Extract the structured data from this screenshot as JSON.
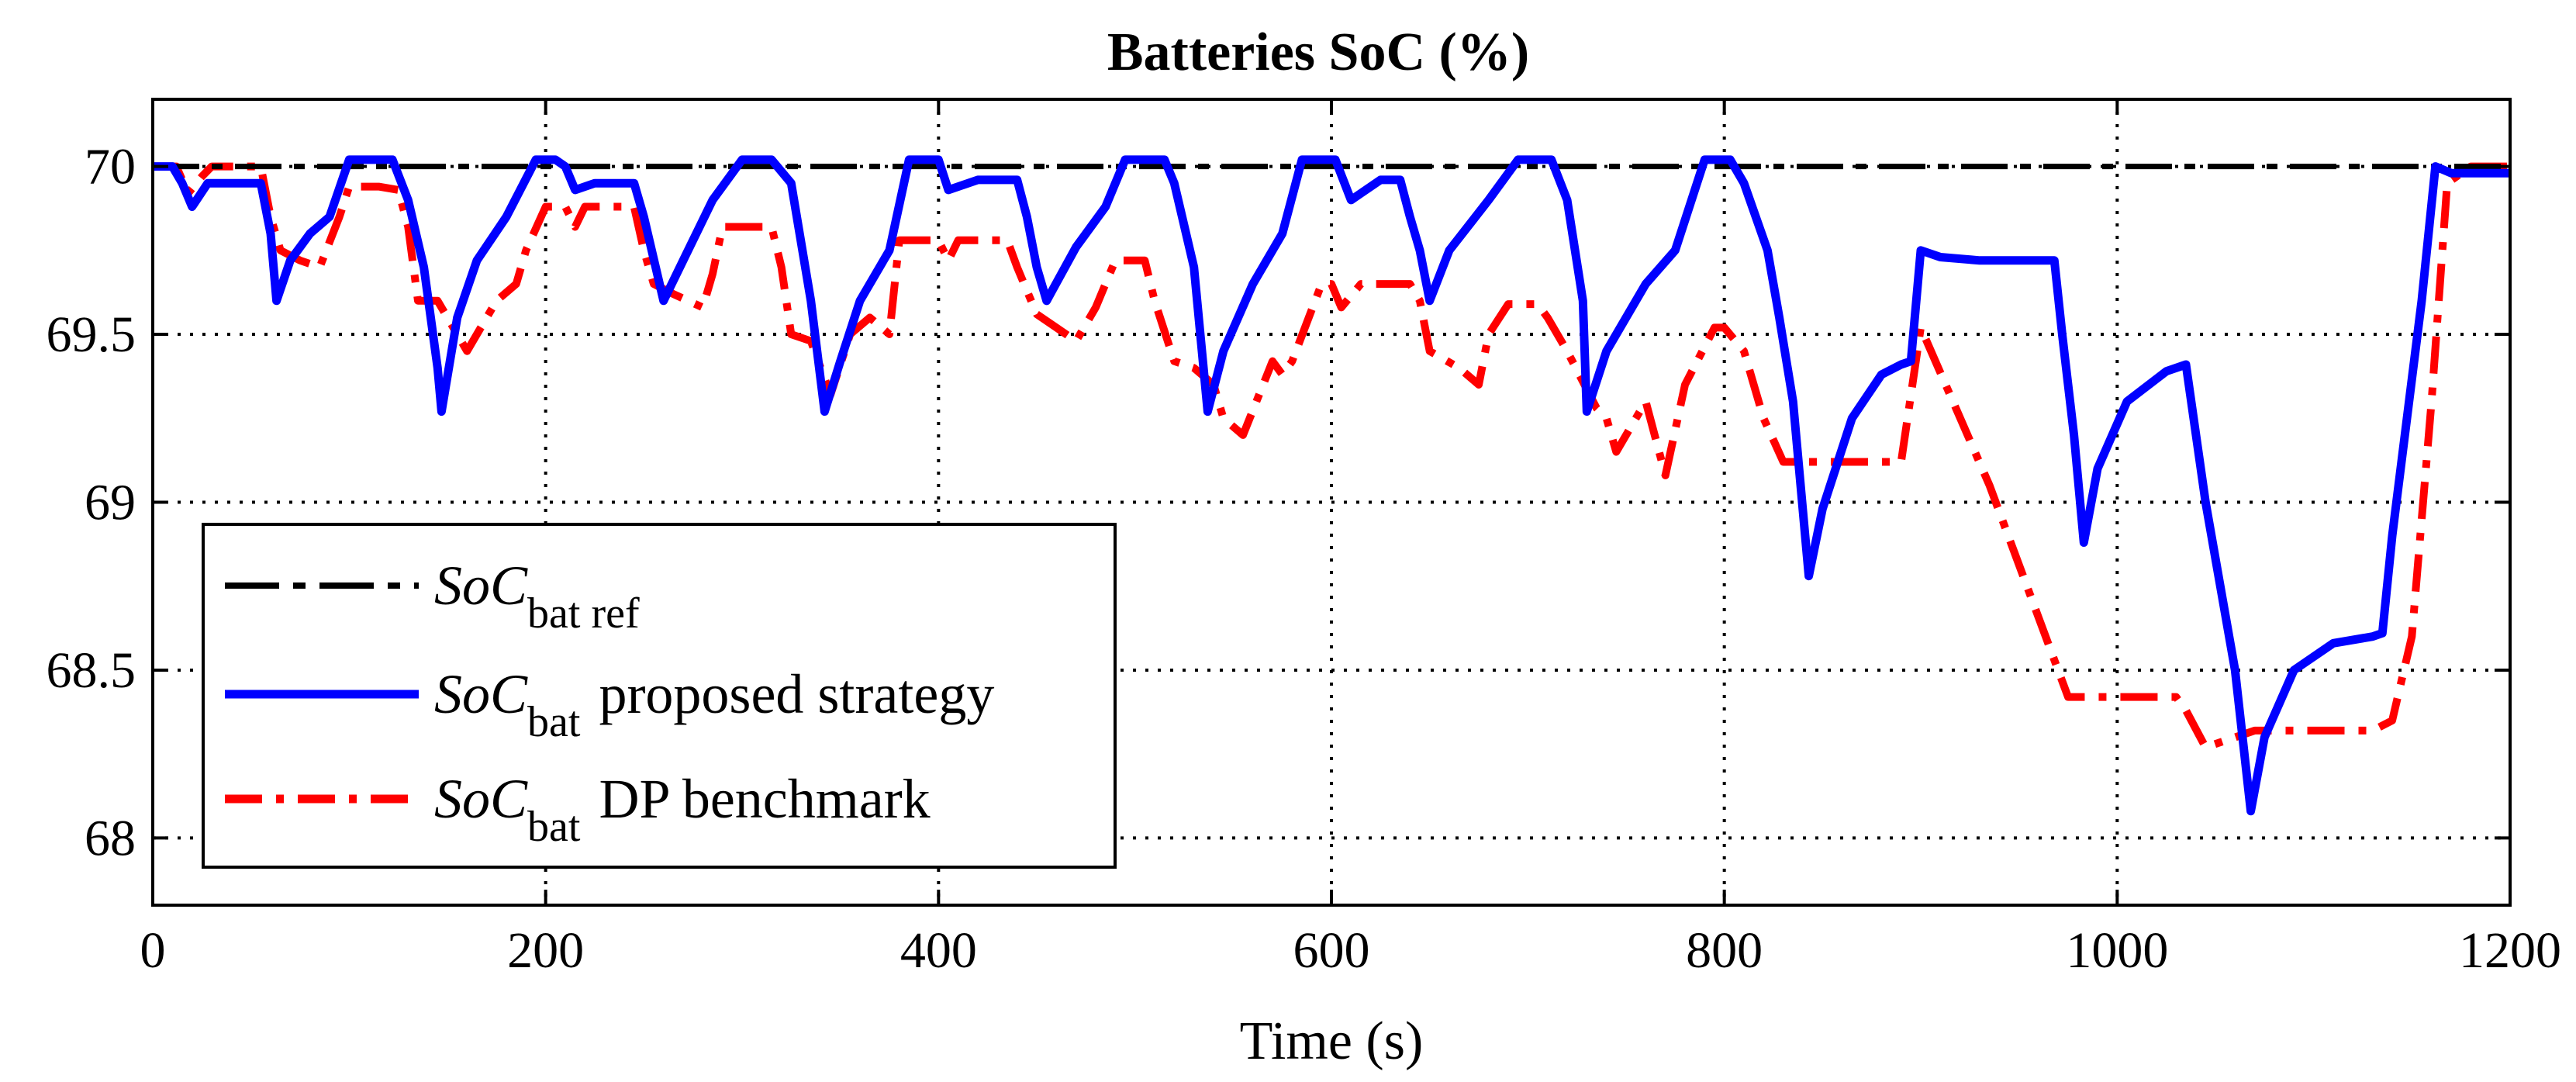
{
  "chart_data": {
    "type": "line",
    "title": "Batteries SoC (%)",
    "xlabel": "Time (s)",
    "ylabel": "",
    "xlim": [
      0,
      1200
    ],
    "ylim": [
      67.8,
      70.2
    ],
    "grid": true,
    "x_ticks": [
      0,
      200,
      400,
      600,
      800,
      1000,
      1200
    ],
    "x_tick_labels": [
      "0",
      "200",
      "400",
      "600",
      "800",
      "1000",
      "1200"
    ],
    "y_ticks": [
      68,
      68.5,
      69,
      69.5,
      70
    ],
    "y_tick_labels": [
      "68",
      "68.5",
      "69",
      "69.5",
      "70"
    ],
    "legend_position": "bottom-left",
    "series": [
      {
        "name": "SoC bat ref",
        "legend_main": "SoC",
        "legend_sub": "bat ref",
        "legend_suffix": "",
        "color": "#000000",
        "style": "dash-dot",
        "x": [
          0,
          1200
        ],
        "y": [
          70.0,
          70.0
        ]
      },
      {
        "name": "SoC bat proposed strategy",
        "legend_main": "SoC",
        "legend_sub": "bat",
        "legend_suffix": "proposed strategy",
        "color": "#0000ff",
        "style": "solid",
        "x": [
          0,
          10,
          15,
          20,
          28,
          40,
          55,
          60,
          63,
          70,
          80,
          90,
          100,
          110,
          122,
          130,
          138,
          145,
          147,
          155,
          165,
          180,
          195,
          205,
          210,
          215,
          225,
          245,
          250,
          260,
          270,
          285,
          300,
          315,
          325,
          335,
          342,
          350,
          360,
          375,
          385,
          400,
          405,
          420,
          440,
          445,
          450,
          455,
          470,
          485,
          495,
          515,
          520,
          530,
          537,
          545,
          560,
          575,
          585,
          602,
          610,
          625,
          635,
          640,
          645,
          650,
          660,
          680,
          695,
          712,
          720,
          728,
          730,
          740,
          760,
          775,
          790,
          803,
          810,
          822,
          828,
          835,
          843,
          850,
          865,
          880,
          890,
          895,
          900,
          910,
          930,
          955,
          968,
          972,
          978,
          983,
          990,
          1005,
          1025,
          1035,
          1045,
          1060,
          1068,
          1075,
          1090,
          1110,
          1130,
          1135,
          1140,
          1155,
          1162,
          1170,
          1185,
          1200
        ],
        "y": [
          70.0,
          70.0,
          69.95,
          69.88,
          69.95,
          69.95,
          69.95,
          69.8,
          69.6,
          69.72,
          69.8,
          69.85,
          70.02,
          70.02,
          70.02,
          69.9,
          69.7,
          69.4,
          69.27,
          69.55,
          69.72,
          69.85,
          70.02,
          70.02,
          70.0,
          69.93,
          69.95,
          69.95,
          69.85,
          69.6,
          69.72,
          69.9,
          70.02,
          70.02,
          69.95,
          69.6,
          69.27,
          69.42,
          69.6,
          69.75,
          70.02,
          70.02,
          69.93,
          69.96,
          69.96,
          69.85,
          69.7,
          69.6,
          69.76,
          69.88,
          70.02,
          70.02,
          69.95,
          69.7,
          69.27,
          69.45,
          69.65,
          69.8,
          70.02,
          70.02,
          69.9,
          69.96,
          69.96,
          69.85,
          69.75,
          69.6,
          69.75,
          69.9,
          70.02,
          70.02,
          69.9,
          69.6,
          69.27,
          69.45,
          69.65,
          69.75,
          70.02,
          70.02,
          69.95,
          69.75,
          69.55,
          69.3,
          68.78,
          68.98,
          69.25,
          69.38,
          69.41,
          69.42,
          69.75,
          69.73,
          69.72,
          69.72,
          69.72,
          69.5,
          69.2,
          68.88,
          69.1,
          69.3,
          69.39,
          69.41,
          69.0,
          68.5,
          68.08,
          68.3,
          68.5,
          68.58,
          68.6,
          68.61,
          68.9,
          69.6,
          70.0,
          69.98,
          69.98,
          69.98
        ]
      },
      {
        "name": "SoC bat DP benchmark",
        "legend_main": "SoC",
        "legend_sub": "bat",
        "legend_suffix": "DP benchmark",
        "color": "#ff0000",
        "style": "dash-dot",
        "x": [
          0,
          12,
          18,
          25,
          30,
          40,
          55,
          60,
          65,
          75,
          85,
          95,
          100,
          115,
          125,
          130,
          135,
          145,
          150,
          160,
          175,
          185,
          190,
          200,
          210,
          215,
          220,
          230,
          245,
          250,
          255,
          265,
          280,
          285,
          290,
          300,
          315,
          320,
          325,
          335,
          345,
          355,
          365,
          375,
          380,
          385,
          400,
          405,
          410,
          420,
          435,
          440,
          450,
          460,
          470,
          480,
          490,
          505,
          510,
          520,
          530,
          540,
          545,
          555,
          570,
          575,
          580,
          595,
          600,
          605,
          615,
          630,
          640,
          645,
          650,
          665,
          675,
          680,
          690,
          705,
          710,
          720,
          735,
          740,
          745,
          760,
          770,
          780,
          795,
          800,
          810,
          820,
          830,
          850,
          880,
          890,
          900,
          935,
          975,
          1030,
          1035,
          1045,
          1070,
          1100,
          1130,
          1140,
          1150,
          1160,
          1168,
          1180,
          1200
        ],
        "y": [
          70.0,
          70.0,
          69.92,
          69.97,
          70.0,
          70.0,
          70.0,
          69.85,
          69.75,
          69.72,
          69.7,
          69.85,
          69.94,
          69.94,
          69.93,
          69.82,
          69.6,
          69.6,
          69.55,
          69.45,
          69.6,
          69.65,
          69.75,
          69.88,
          69.88,
          69.82,
          69.88,
          69.88,
          69.88,
          69.75,
          69.65,
          69.62,
          69.58,
          69.68,
          69.82,
          69.82,
          69.82,
          69.7,
          69.5,
          69.48,
          69.32,
          69.5,
          69.55,
          69.5,
          69.78,
          69.78,
          69.78,
          69.72,
          69.78,
          69.78,
          69.78,
          69.7,
          69.56,
          69.52,
          69.48,
          69.58,
          69.72,
          69.72,
          69.6,
          69.42,
          69.4,
          69.35,
          69.25,
          69.2,
          69.42,
          69.38,
          69.42,
          69.65,
          69.65,
          69.58,
          69.65,
          69.65,
          69.65,
          69.6,
          69.45,
          69.4,
          69.35,
          69.5,
          69.59,
          69.59,
          69.55,
          69.45,
          69.28,
          69.25,
          69.15,
          69.3,
          69.08,
          69.35,
          69.52,
          69.52,
          69.45,
          69.25,
          69.12,
          69.12,
          69.12,
          69.12,
          69.52,
          69.05,
          68.42,
          68.42,
          68.38,
          68.27,
          68.32,
          68.32,
          68.32,
          68.35,
          68.6,
          69.3,
          69.95,
          70.0,
          70.0
        ]
      }
    ]
  }
}
